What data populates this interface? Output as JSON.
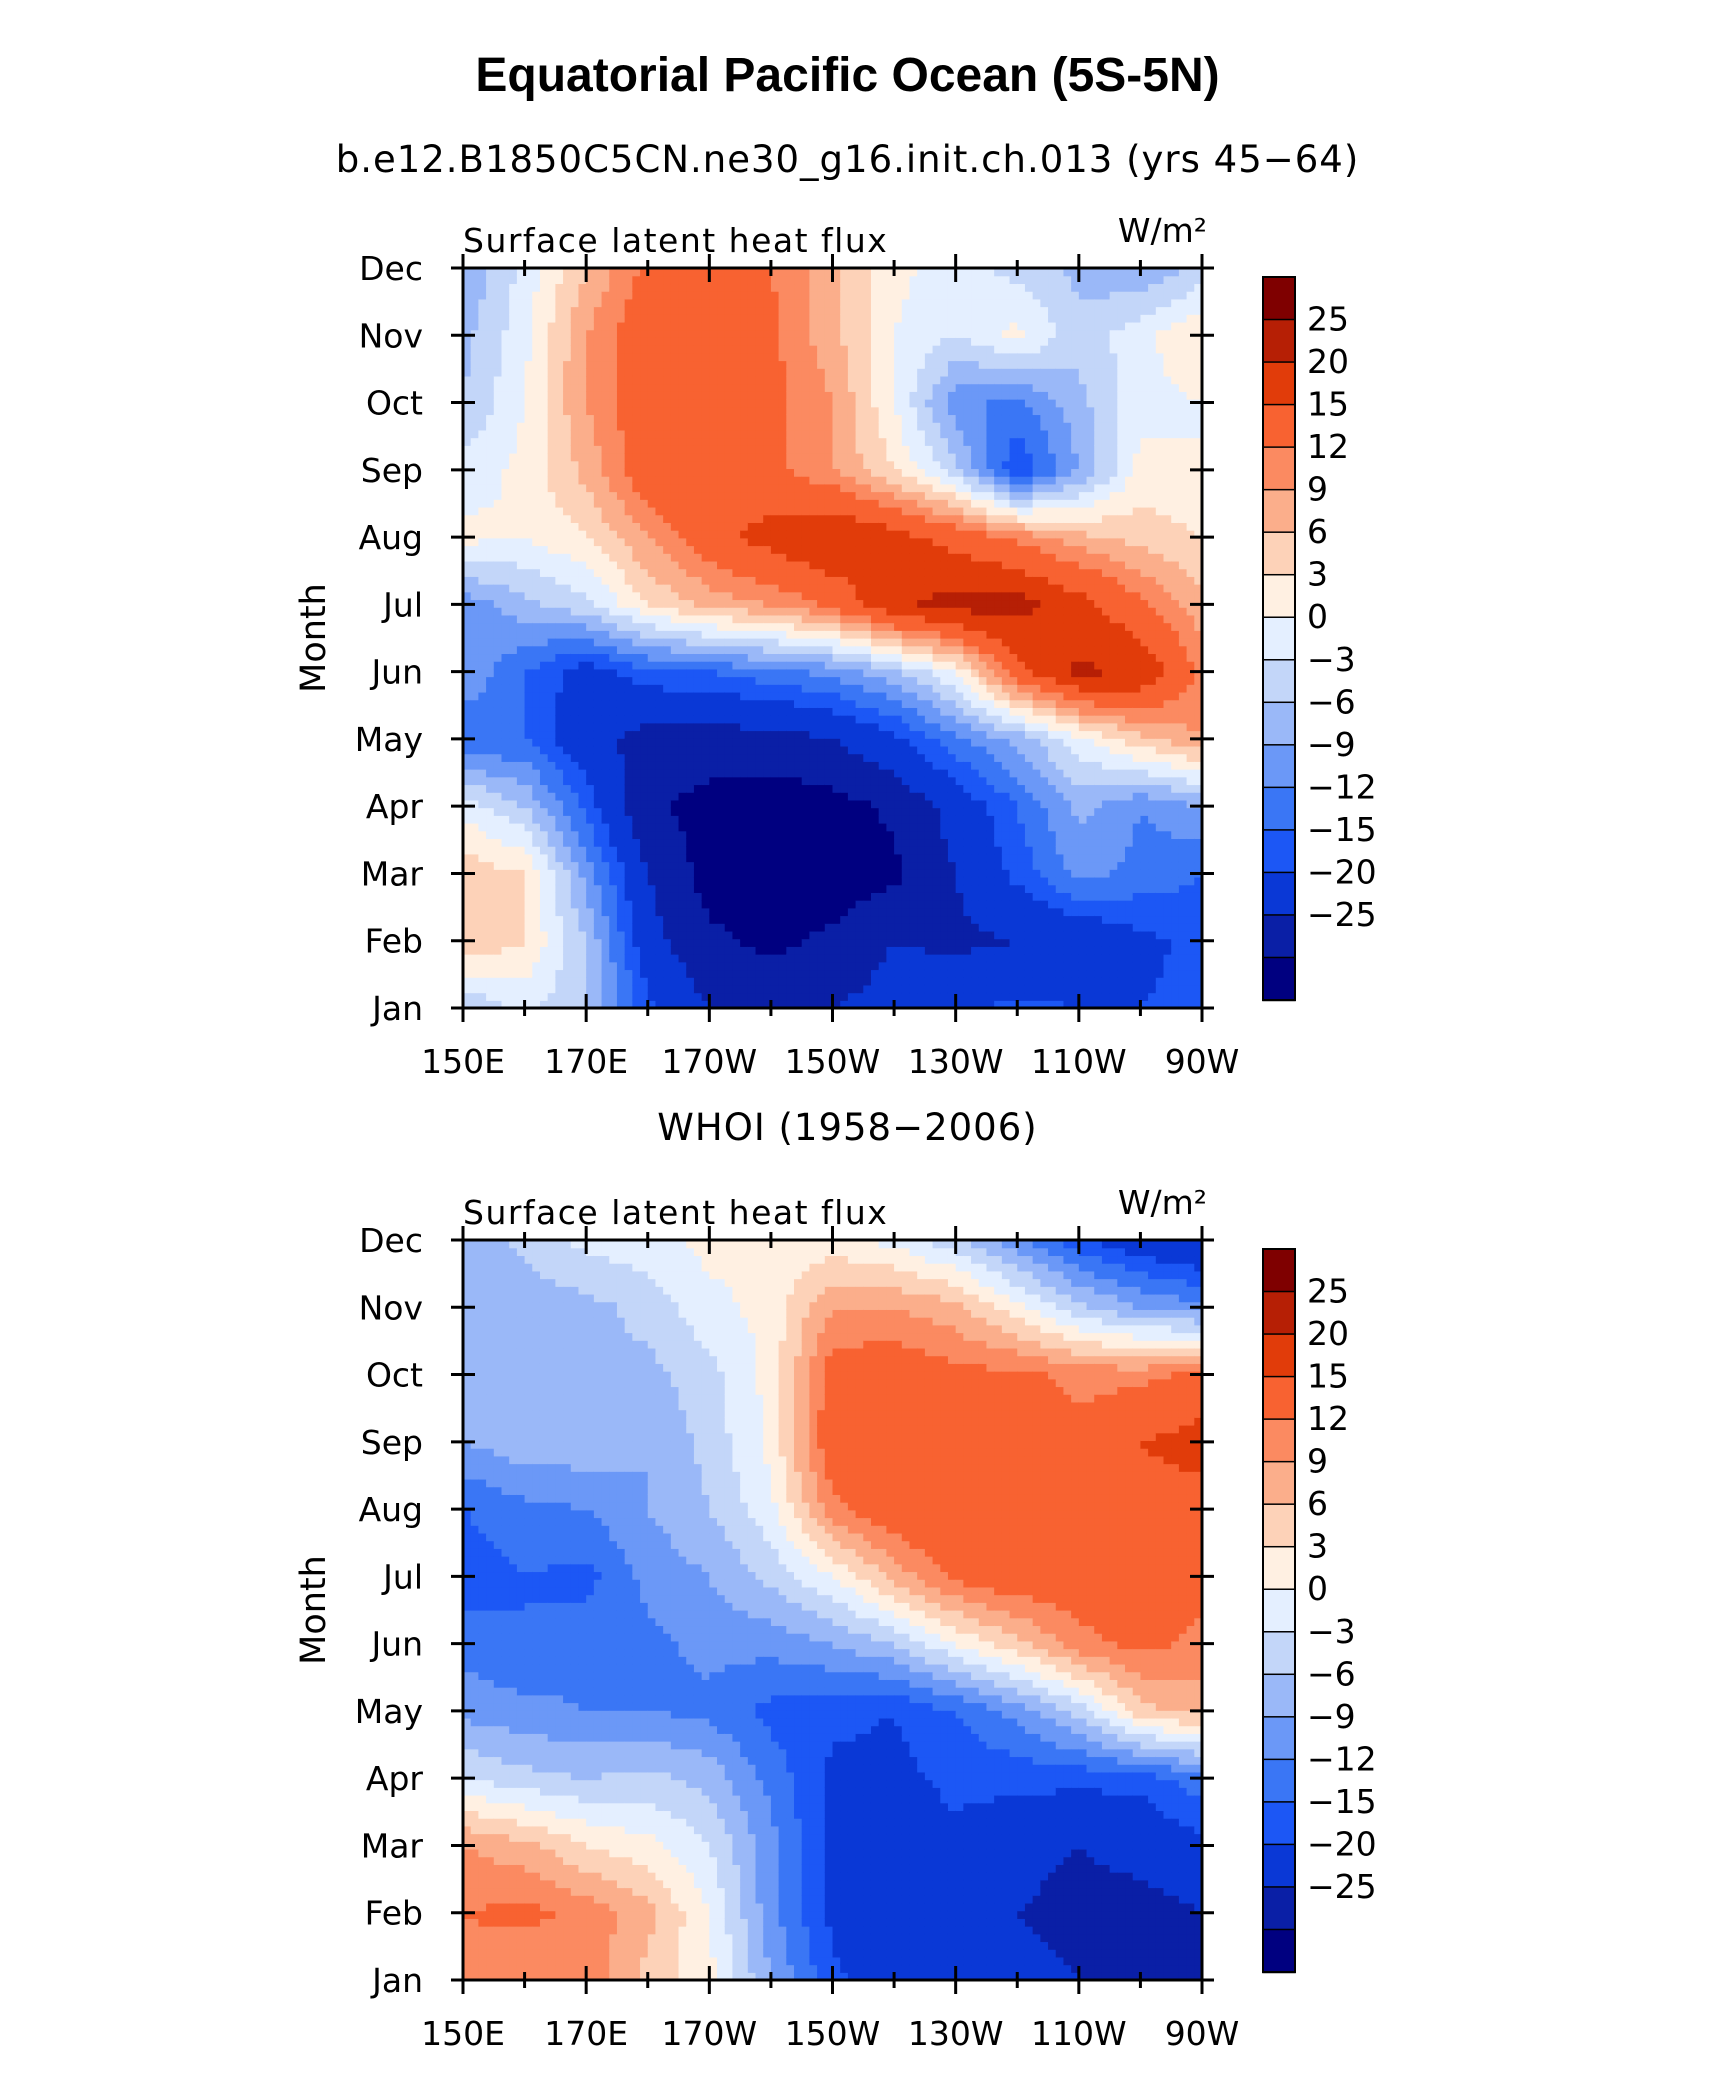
{
  "page": {
    "title": "Equatorial Pacific Ocean (5S-5N)",
    "subtitles": [
      "b.e12.B1850C5CN.ne30_g16.init.ch.013 (yrs 45−64)",
      "WHOI (1958−2006)"
    ]
  },
  "contour_levels": [
    -25,
    -20,
    -15,
    -12,
    -9,
    -6,
    -3,
    0,
    3,
    6,
    9,
    12,
    15,
    20,
    25
  ],
  "colors": [
    "#000080",
    "#0a1fa6",
    "#0a38d6",
    "#1c57f5",
    "#3a76f5",
    "#6b98f7",
    "#9ab8f8",
    "#c3d6f9",
    "#e4efff",
    "#fff0e2",
    "#fdd2b8",
    "#fbae8b",
    "#fb8a61",
    "#f86231",
    "#e13c0a",
    "#b61f05",
    "#7f0000"
  ],
  "chart_data": [
    {
      "type": "heatmap",
      "title": "b.e12.B1850C5CN.ne30_g16.init.ch.013 (yrs 45−64)",
      "variable_label": "Surface latent heat flux",
      "units_label": "W/m²",
      "xlabel": "",
      "ylabel": "Month",
      "x": [
        150,
        160,
        170,
        180,
        190,
        200,
        210,
        220,
        230,
        240,
        250,
        260,
        270
      ],
      "x_tick_labels": [
        "150E",
        "170E",
        "170W",
        "150W",
        "130W",
        "110W",
        "90W"
      ],
      "y": [
        "Jan",
        "Feb",
        "Mar",
        "Apr",
        "May",
        "Jun",
        "Jul",
        "Aug",
        "Sep",
        "Oct",
        "Nov",
        "Dec"
      ],
      "colorbar_labels": [
        "25",
        "20",
        "15",
        "12",
        "9",
        "6",
        "3",
        "0",
        "−3",
        "−6",
        "−9",
        "−12",
        "−15",
        "−20",
        "−25"
      ],
      "values": [
        [
          -3,
          1,
          -3,
          -14,
          -20,
          -22,
          -20,
          -18,
          -16,
          -14,
          -15,
          -15,
          -14
        ],
        [
          9,
          6,
          -3,
          -18,
          -24,
          -26,
          -24,
          -20,
          -21,
          -20,
          -19,
          -16,
          -14
        ],
        [
          8,
          6,
          -7,
          -20,
          -27,
          -28,
          -28,
          -26,
          -20,
          -14,
          -8,
          -10,
          -12
        ],
        [
          2,
          -3,
          -13,
          -24,
          -27,
          -28,
          -27,
          -24,
          -18,
          -12,
          -5,
          -9,
          -6
        ],
        [
          -12,
          -12,
          -18,
          -22,
          -22,
          -22,
          -20,
          -16,
          -10,
          -5,
          2,
          8,
          12
        ],
        [
          -6,
          -12,
          -17,
          -13,
          -12,
          -10,
          -8,
          -4,
          3,
          18,
          26,
          24,
          14
        ],
        [
          -8,
          -4,
          -1,
          6,
          10,
          12,
          16,
          24,
          27,
          27,
          22,
          16,
          10
        ],
        [
          4,
          3,
          6,
          12,
          18,
          22,
          25,
          22,
          18,
          14,
          10,
          8,
          6
        ],
        [
          1,
          4,
          10,
          18,
          18,
          16,
          12,
          6,
          -2,
          -15,
          -6,
          4,
          3
        ],
        [
          -3,
          3,
          12,
          18,
          16,
          16,
          12,
          3,
          -8,
          -10,
          -4,
          2,
          3
        ],
        [
          -4,
          2,
          12,
          18,
          18,
          16,
          10,
          3,
          0,
          4,
          -2,
          2,
          6
        ],
        [
          -6,
          1,
          9,
          16,
          16,
          15,
          10,
          4,
          1,
          -1,
          -4,
          -6,
          -2
        ]
      ]
    },
    {
      "type": "heatmap",
      "title": "WHOI (1958−2006)",
      "variable_label": "Surface latent heat flux",
      "units_label": "W/m²",
      "xlabel": "",
      "ylabel": "Month",
      "x": [
        150,
        160,
        170,
        180,
        190,
        200,
        210,
        220,
        230,
        240,
        250,
        260,
        270
      ],
      "x_tick_labels": [
        "150E",
        "170E",
        "170W",
        "150W",
        "130W",
        "110W",
        "90W"
      ],
      "y": [
        "Jan",
        "Feb",
        "Mar",
        "Apr",
        "May",
        "Jun",
        "Jul",
        "Aug",
        "Sep",
        "Oct",
        "Nov",
        "Dec"
      ],
      "colorbar_labels": [
        "25",
        "20",
        "15",
        "12",
        "9",
        "6",
        "3",
        "0",
        "−3",
        "−6",
        "−9",
        "−12",
        "−15",
        "−20",
        "−25"
      ],
      "values": [
        [
          14,
          12,
          14,
          8,
          4,
          -6,
          -14,
          -18,
          -18,
          -18,
          -20,
          -22,
          -24
        ],
        [
          15,
          16,
          14,
          10,
          3,
          -8,
          -16,
          -18,
          -18,
          -20,
          -22,
          -22,
          -20
        ],
        [
          12,
          10,
          6,
          4,
          0,
          -8,
          -16,
          -18,
          -16,
          -18,
          -20,
          -18,
          -16
        ],
        [
          0,
          -2,
          -3,
          -2,
          -4,
          -10,
          -16,
          -16,
          -14,
          -14,
          -14,
          -14,
          -10
        ],
        [
          -7,
          -8,
          -9,
          -9,
          -10,
          -13,
          -14,
          -15,
          -12,
          -8,
          -2,
          8,
          10
        ],
        [
          -10,
          -12,
          -10,
          -10,
          -8,
          -8,
          -6,
          -3,
          3,
          8,
          14,
          16,
          14
        ],
        [
          -14,
          -12,
          -13,
          -8,
          -6,
          -2,
          3,
          10,
          16,
          18,
          17,
          18,
          16
        ],
        [
          -12,
          -10,
          -9,
          -6,
          -3,
          2,
          14,
          18,
          20,
          18,
          18,
          18,
          18
        ],
        [
          -6,
          -4,
          -4,
          -6,
          -2,
          4,
          18,
          18,
          18,
          17,
          16,
          20,
          22
        ],
        [
          -4,
          -3,
          -3,
          -4,
          -1,
          4,
          17,
          18,
          16,
          16,
          14,
          14,
          16
        ],
        [
          -5,
          -5,
          -4,
          -2,
          2,
          4,
          12,
          12,
          10,
          4,
          -2,
          -6,
          -8
        ],
        [
          -6,
          -2,
          1,
          2,
          4,
          4,
          4,
          2,
          -2,
          -8,
          -14,
          -18,
          -20
        ]
      ]
    }
  ]
}
